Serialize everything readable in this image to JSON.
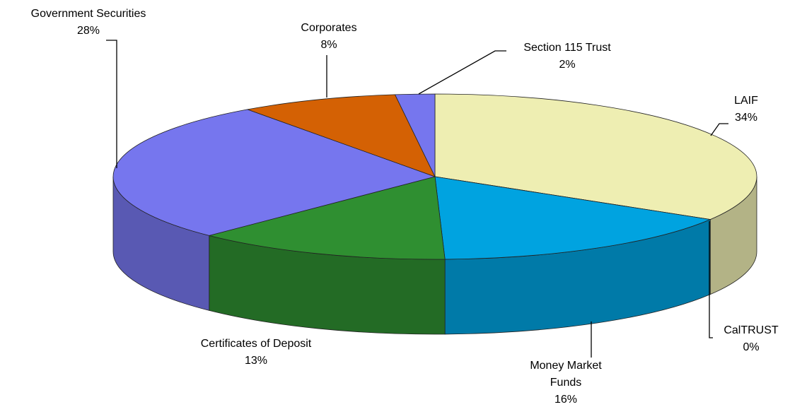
{
  "chart_data": {
    "type": "pie",
    "categories": [
      "LAIF",
      "CalTRUST",
      "Money Market Funds",
      "Certificates of Deposit",
      "Government Securities",
      "Corporates",
      "Section 115 Trust"
    ],
    "values": [
      34,
      0,
      16,
      13,
      28,
      8,
      2
    ],
    "value_labels": [
      "34%",
      "0%",
      "16%",
      "13%",
      "28%",
      "8%",
      "2%"
    ],
    "colors": [
      "#eeeeb2",
      "#8b5a2b",
      "#00a3e0",
      "#2f8f31",
      "#7676ee",
      "#d46104",
      "#7676ee"
    ]
  }
}
